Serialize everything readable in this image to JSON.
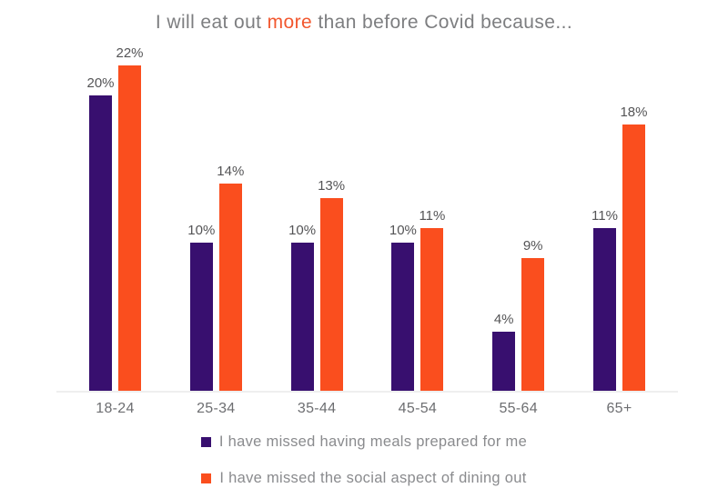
{
  "title": {
    "prefix": "I will eat out ",
    "highlight": "more",
    "suffix": " than before Covid because..."
  },
  "chart_data": {
    "type": "bar",
    "categories": [
      "18-24",
      "25-34",
      "35-44",
      "45-54",
      "55-64",
      "65+"
    ],
    "series": [
      {
        "name": "I have missed having meals prepared for me",
        "color": "#380f6f",
        "values": [
          20,
          10,
          10,
          10,
          4,
          11
        ]
      },
      {
        "name": "I have missed the social aspect of dining out",
        "color": "#fa4e1e",
        "values": [
          22,
          14,
          13,
          11,
          9,
          18
        ]
      }
    ],
    "value_suffix": "%",
    "title": "I will eat out more than before Covid because...",
    "xlabel": "",
    "ylabel": "",
    "ylim": [
      0,
      22
    ],
    "grid": false,
    "value_labels": true,
    "legend_position": "bottom"
  },
  "colors": {
    "purple": "#380f6f",
    "orange": "#fa4e1e",
    "title_gray": "#7d7e80",
    "title_highlight": "#f2572e",
    "value_label_gray": "#545456",
    "axis_label_gray": "#6d6e71",
    "legend_text_gray": "#8a8b8e",
    "axis_line_gray": "#efefef"
  },
  "legend": {
    "items": [
      {
        "label": "I have missed having meals prepared for me",
        "color": "#380f6f"
      },
      {
        "label": "I have missed the social aspect of dining out",
        "color": "#fa4e1e"
      }
    ]
  }
}
